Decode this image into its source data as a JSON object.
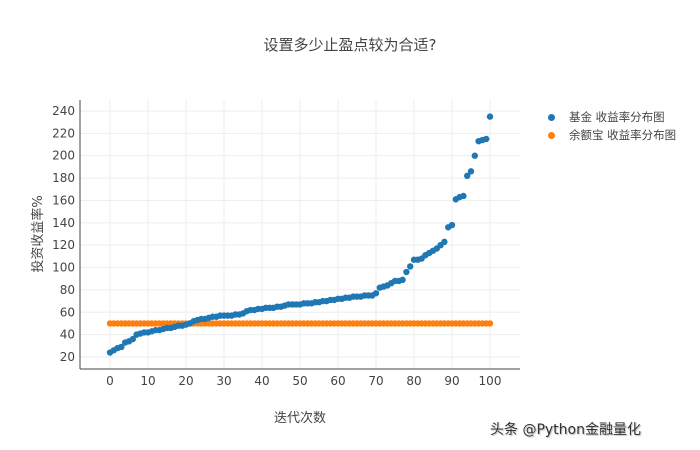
{
  "title": "设置多少止盈点较为合适?",
  "watermark": "头条 @Python金融量化",
  "legend": [
    {
      "label": "基金 收益率分布图",
      "color": "#1f77b4"
    },
    {
      "label": "余额宝 收益率分布图",
      "color": "#ff7f0e"
    }
  ],
  "chart_data": {
    "type": "scatter",
    "title": "设置多少止盈点较为合适?",
    "xlabel": "迭代次数",
    "ylabel": "投资收益率%",
    "xlim": [
      -5,
      105
    ],
    "ylim": [
      8,
      248
    ],
    "xticks": [
      0,
      10,
      20,
      30,
      40,
      50,
      60,
      70,
      80,
      90,
      100
    ],
    "yticks": [
      20,
      40,
      60,
      80,
      100,
      120,
      140,
      160,
      180,
      200,
      220,
      240
    ],
    "grid": true,
    "legend_position": "right-top",
    "series": [
      {
        "name": "基金 收益率分布图",
        "color": "#1f77b4",
        "x": "0..100",
        "values": [
          24,
          26,
          28,
          29,
          33,
          34,
          36,
          40,
          41,
          42,
          42,
          43,
          44,
          44,
          45,
          46,
          46,
          47,
          48,
          48,
          49,
          50,
          52,
          53,
          54,
          54,
          55,
          56,
          56,
          57,
          57,
          57,
          57,
          58,
          58,
          59,
          61,
          62,
          62,
          63,
          63,
          64,
          64,
          64,
          65,
          65,
          66,
          67,
          67,
          67,
          67,
          68,
          68,
          68,
          69,
          69,
          70,
          70,
          71,
          71,
          72,
          72,
          73,
          73,
          74,
          74,
          74,
          75,
          75,
          75,
          77,
          82,
          83,
          84,
          86,
          88,
          88,
          89,
          96,
          101,
          107,
          107,
          108,
          111,
          113,
          115,
          117,
          120,
          123,
          136,
          138,
          161,
          163,
          164,
          182,
          186,
          200,
          213,
          214,
          215,
          235
        ]
      },
      {
        "name": "余额宝 收益率分布图",
        "color": "#ff7f0e",
        "x": "0..100",
        "values": [
          50,
          50,
          50,
          50,
          50,
          50,
          50,
          50,
          50,
          50,
          50,
          50,
          50,
          50,
          50,
          50,
          50,
          50,
          50,
          50,
          50,
          50,
          50,
          50,
          50,
          50,
          50,
          50,
          50,
          50,
          50,
          50,
          50,
          50,
          50,
          50,
          50,
          50,
          50,
          50,
          50,
          50,
          50,
          50,
          50,
          50,
          50,
          50,
          50,
          50,
          50,
          50,
          50,
          50,
          50,
          50,
          50,
          50,
          50,
          50,
          50,
          50,
          50,
          50,
          50,
          50,
          50,
          50,
          50,
          50,
          50,
          50,
          50,
          50,
          50,
          50,
          50,
          50,
          50,
          50,
          50,
          50,
          50,
          50,
          50,
          50,
          50,
          50,
          50,
          50,
          50,
          50,
          50,
          50,
          50,
          50,
          50,
          50,
          50,
          50,
          50
        ]
      }
    ]
  }
}
